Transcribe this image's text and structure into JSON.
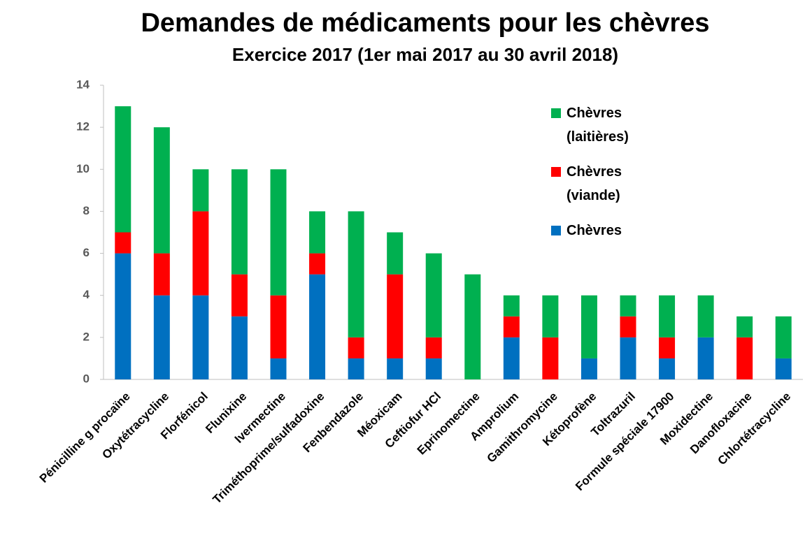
{
  "chart_data": {
    "type": "stacked_bar",
    "title": "Demandes de médicaments pour les chèvres",
    "subtitle": "Exercice 2017 (1er mai 2017 au 30 avril 2018)",
    "categories": [
      "Pénicilline g procaïne",
      "Oxytétracycline",
      "Florfénicol",
      "Flunixine",
      "Ivermectine",
      "Triméthoprime/sulfadoxine",
      "Fenbendazole",
      "Méoxicam",
      "Ceftiofur HCl",
      "Eprinomectine",
      "Amprolium",
      "Gamithromycine",
      "Kétoprofène",
      "Toltrazuril",
      "Formule spéciale 17900",
      "Moxidectine",
      "Danofloxacine",
      "Chlortétracycline"
    ],
    "series": [
      {
        "name": "Chèvres",
        "color": "#0070c0",
        "values": [
          6,
          4,
          4,
          3,
          1,
          5,
          1,
          1,
          1,
          0,
          2,
          0,
          1,
          2,
          1,
          2,
          0,
          1
        ]
      },
      {
        "name": "Chèvres (viande)",
        "color": "#ff0000",
        "values": [
          1,
          2,
          4,
          2,
          3,
          1,
          1,
          4,
          1,
          0,
          1,
          2,
          0,
          1,
          1,
          0,
          2,
          0
        ]
      },
      {
        "name": "Chèvres (laitières)",
        "color": "#00b050",
        "values": [
          6,
          6,
          2,
          5,
          6,
          2,
          6,
          2,
          4,
          5,
          1,
          2,
          3,
          1,
          2,
          2,
          1,
          2
        ]
      }
    ],
    "ylim": [
      0,
      14
    ],
    "yticks": [
      0,
      2,
      4,
      6,
      8,
      10,
      12,
      14
    ],
    "grid": false,
    "legend": "upper right"
  }
}
